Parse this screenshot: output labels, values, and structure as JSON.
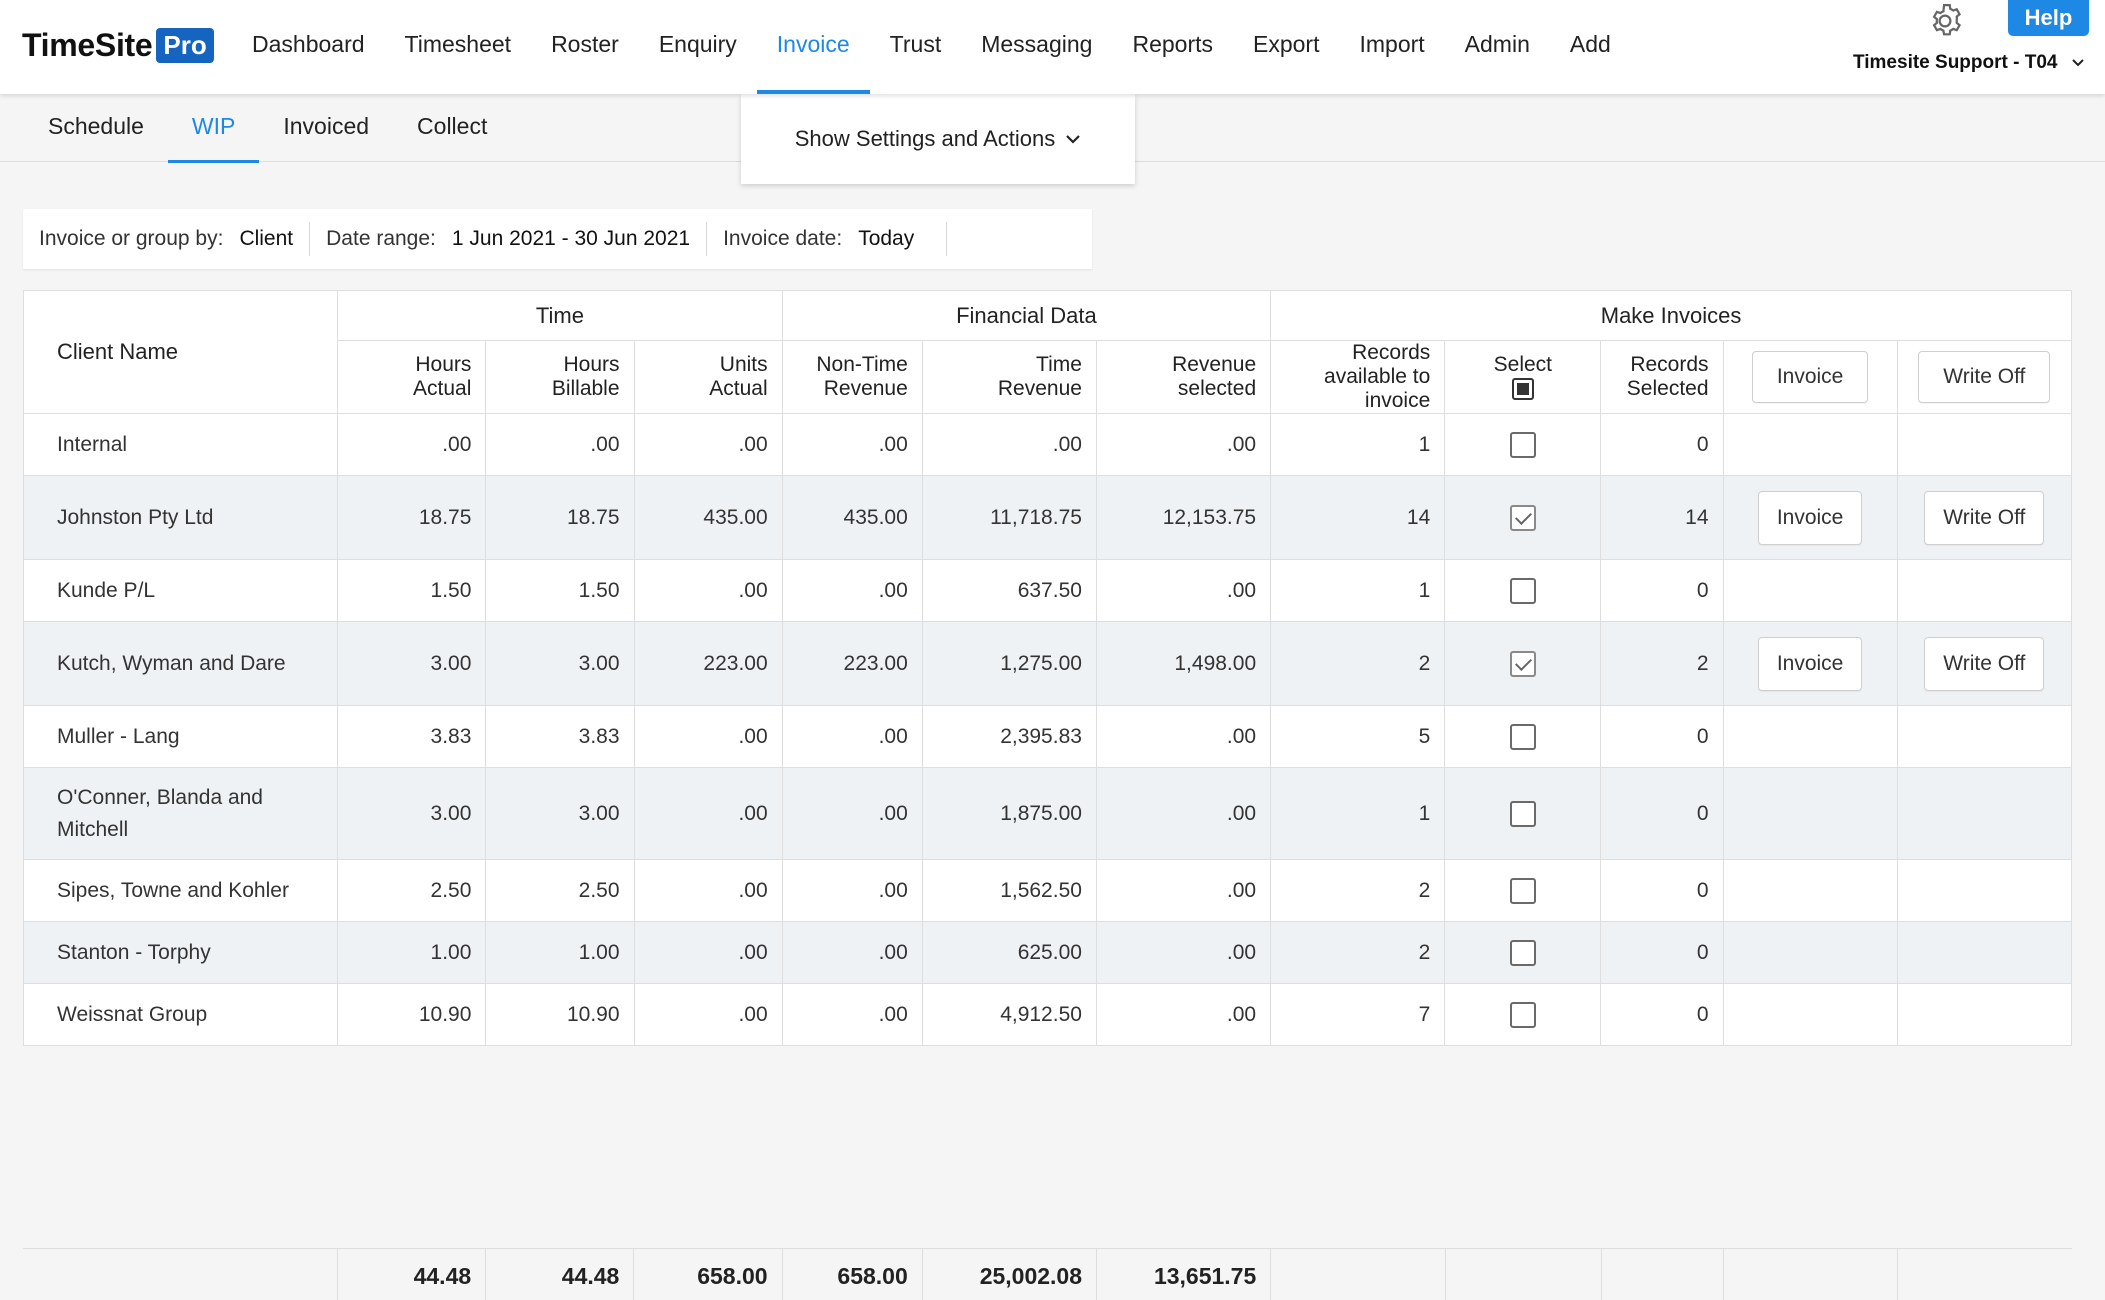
{
  "app": {
    "logo_text": "TimeSite",
    "logo_badge": "Pro",
    "help_label": "Help",
    "user_label": "Timesite Support - T04"
  },
  "main_nav": {
    "dashboard": "Dashboard",
    "timesheet": "Timesheet",
    "roster": "Roster",
    "enquiry": "Enquiry",
    "invoice": "Invoice",
    "trust": "Trust",
    "messaging": "Messaging",
    "reports": "Reports",
    "export": "Export",
    "import": "Import",
    "admin": "Admin",
    "add": "Add"
  },
  "sub_nav": {
    "schedule": "Schedule",
    "wip": "WIP",
    "invoiced": "Invoiced",
    "collect": "Collect"
  },
  "settings_toggle": "Show Settings and Actions",
  "filters": {
    "group_by_label": "Invoice or group by:",
    "group_by_value": "Client",
    "date_range_label": "Date range:",
    "date_range_value": "1 Jun 2021 - 30 Jun 2021",
    "invoice_date_label": "Invoice date:",
    "invoice_date_value": "Today"
  },
  "table": {
    "groups": {
      "time": "Time",
      "financial": "Financial Data",
      "make_invoices": "Make Invoices"
    },
    "columns": {
      "client_name": "Client Name",
      "hours_actual": [
        "Hours",
        "Actual"
      ],
      "hours_billable": [
        "Hours",
        "Billable"
      ],
      "units_actual": [
        "Units",
        "Actual"
      ],
      "non_time_revenue": [
        "Non-Time",
        "Revenue"
      ],
      "time_revenue": [
        "Time",
        "Revenue"
      ],
      "revenue_selected": [
        "Revenue",
        "selected"
      ],
      "records_available": [
        "Records",
        "available to",
        "invoice"
      ],
      "select": "Select",
      "records_selected": [
        "Records",
        "Selected"
      ],
      "invoice_button": "Invoice",
      "write_off_button": "Write Off"
    },
    "rows": [
      {
        "client": "Internal",
        "hours_actual": ".00",
        "hours_billable": ".00",
        "units_actual": ".00",
        "non_time_revenue": ".00",
        "time_revenue": ".00",
        "revenue_selected": ".00",
        "records_available": "1",
        "selected": false,
        "records_selected": "0",
        "actions": false
      },
      {
        "client": "Johnston Pty Ltd",
        "hours_actual": "18.75",
        "hours_billable": "18.75",
        "units_actual": "435.00",
        "non_time_revenue": "435.00",
        "time_revenue": "11,718.75",
        "revenue_selected": "12,153.75",
        "records_available": "14",
        "selected": true,
        "records_selected": "14",
        "actions": true
      },
      {
        "client": "Kunde P/L",
        "hours_actual": "1.50",
        "hours_billable": "1.50",
        "units_actual": ".00",
        "non_time_revenue": ".00",
        "time_revenue": "637.50",
        "revenue_selected": ".00",
        "records_available": "1",
        "selected": false,
        "records_selected": "0",
        "actions": false
      },
      {
        "client": "Kutch, Wyman and Dare",
        "hours_actual": "3.00",
        "hours_billable": "3.00",
        "units_actual": "223.00",
        "non_time_revenue": "223.00",
        "time_revenue": "1,275.00",
        "revenue_selected": "1,498.00",
        "records_available": "2",
        "selected": true,
        "records_selected": "2",
        "actions": true
      },
      {
        "client": "Muller - Lang",
        "hours_actual": "3.83",
        "hours_billable": "3.83",
        "units_actual": ".00",
        "non_time_revenue": ".00",
        "time_revenue": "2,395.83",
        "revenue_selected": ".00",
        "records_available": "5",
        "selected": false,
        "records_selected": "0",
        "actions": false
      },
      {
        "client": "O'Conner, Blanda and Mitchell",
        "hours_actual": "3.00",
        "hours_billable": "3.00",
        "units_actual": ".00",
        "non_time_revenue": ".00",
        "time_revenue": "1,875.00",
        "revenue_selected": ".00",
        "records_available": "1",
        "selected": false,
        "records_selected": "0",
        "actions": false
      },
      {
        "client": "Sipes, Towne and Kohler",
        "hours_actual": "2.50",
        "hours_billable": "2.50",
        "units_actual": ".00",
        "non_time_revenue": ".00",
        "time_revenue": "1,562.50",
        "revenue_selected": ".00",
        "records_available": "2",
        "selected": false,
        "records_selected": "0",
        "actions": false
      },
      {
        "client": "Stanton - Torphy",
        "hours_actual": "1.00",
        "hours_billable": "1.00",
        "units_actual": ".00",
        "non_time_revenue": ".00",
        "time_revenue": "625.00",
        "revenue_selected": ".00",
        "records_available": "2",
        "selected": false,
        "records_selected": "0",
        "actions": false
      },
      {
        "client": "Weissnat Group",
        "hours_actual": "10.90",
        "hours_billable": "10.90",
        "units_actual": ".00",
        "non_time_revenue": ".00",
        "time_revenue": "4,912.50",
        "revenue_selected": ".00",
        "records_available": "7",
        "selected": false,
        "records_selected": "0",
        "actions": false
      }
    ],
    "totals": {
      "hours_actual": "44.48",
      "hours_billable": "44.48",
      "units_actual": "658.00",
      "non_time_revenue": "658.00",
      "time_revenue": "25,002.08",
      "revenue_selected": "13,651.75"
    }
  },
  "colors": {
    "accent": "#1e88e5",
    "logo_badge": "#1565c0",
    "alt_row": "#eff2f5"
  },
  "icons": {
    "settings": "gear-icon",
    "dropdown": "chevron-down-icon"
  }
}
